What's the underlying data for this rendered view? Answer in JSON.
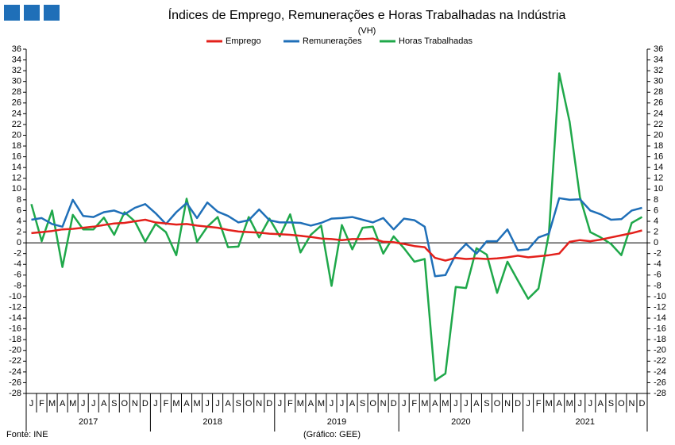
{
  "chart_data": {
    "type": "line",
    "title": "Índices de Emprego, Remunerações e Horas Trabalhadas na Indústria",
    "subtitle": "(VH)",
    "source": "Fonte: INE",
    "credit": "(Gráfico: GEE)",
    "categories": [
      "J",
      "F",
      "M",
      "A",
      "M",
      "J",
      "J",
      "A",
      "S",
      "O",
      "N",
      "D",
      "J",
      "F",
      "M",
      "A",
      "M",
      "J",
      "J",
      "A",
      "S",
      "O",
      "N",
      "D",
      "J",
      "F",
      "M",
      "A",
      "M",
      "J",
      "J",
      "A",
      "S",
      "O",
      "N",
      "D",
      "J",
      "F",
      "M",
      "A",
      "M",
      "J",
      "J",
      "A",
      "S",
      "O",
      "N",
      "D",
      "J",
      "F",
      "M",
      "A",
      "M",
      "J",
      "J",
      "A",
      "S",
      "O",
      "N",
      "D"
    ],
    "years": [
      "2017",
      "2018",
      "2019",
      "2020",
      "2021"
    ],
    "series": [
      {
        "name": "Emprego",
        "color": "#e3201b",
        "values": [
          1.8,
          2,
          2.2,
          2.5,
          2.6,
          2.8,
          3,
          3.3,
          3.6,
          3.7,
          4,
          4.3,
          3.8,
          3.6,
          3.4,
          3.5,
          3.2,
          3,
          2.8,
          2.4,
          2.1,
          2,
          1.9,
          1.7,
          1.6,
          1.5,
          1.3,
          1.1,
          0.8,
          0.7,
          0.5,
          0.7,
          0.7,
          0.8,
          0.2,
          0.1,
          -0.2,
          -0.6,
          -0.8,
          -2.8,
          -3.3,
          -2.8,
          -3,
          -2.9,
          -3,
          -2.9,
          -2.7,
          -2.4,
          -2.7,
          -2.5,
          -2.3,
          -2,
          0.2,
          0.5,
          0.3,
          0.6,
          1,
          1.4,
          1.8,
          2.3
        ]
      },
      {
        "name": "Remunerações",
        "color": "#1f6fb8",
        "values": [
          4.3,
          4.6,
          3.5,
          3,
          8,
          5,
          4.8,
          5.7,
          6,
          5.3,
          6.5,
          7.2,
          5.5,
          3.5,
          5.7,
          7.4,
          4.6,
          7.5,
          5.8,
          5,
          3.8,
          4.2,
          6.2,
          4.2,
          3.8,
          3.8,
          3.7,
          3.2,
          3.7,
          4.5,
          4.6,
          4.8,
          4.3,
          3.8,
          4.6,
          2.5,
          4.5,
          4.2,
          3,
          -6.2,
          -6,
          -2.2,
          -0.2,
          -2,
          0.3,
          0.3,
          2.5,
          -1.4,
          -1.2,
          1,
          1.7,
          8.3,
          8,
          8.1,
          6,
          5.3,
          4.3,
          4.4,
          6,
          6.5
        ]
      },
      {
        "name": "Horas Trabalhadas",
        "color": "#1fa84a",
        "values": [
          7.2,
          0.3,
          6,
          -4.5,
          5.2,
          2.5,
          2.5,
          4.7,
          1.5,
          5.7,
          4,
          0.2,
          3.5,
          2,
          -2.3,
          8.2,
          0.2,
          3,
          4.8,
          -0.8,
          -0.7,
          4.8,
          1,
          4.5,
          1.2,
          5.3,
          -1.8,
          1.5,
          3.2,
          -8,
          3.3,
          -1.2,
          2.8,
          3,
          -2,
          1.2,
          -1,
          -3.5,
          -3,
          -25.6,
          -24.3,
          -8.2,
          -8.4,
          -1,
          -2.2,
          -9.3,
          -3.5,
          -7,
          -10.4,
          -8.5,
          1.7,
          31.5,
          22.5,
          8.5,
          2,
          1,
          -0.2,
          -2.3,
          3.7,
          4.8
        ]
      }
    ],
    "ylim": [
      -28,
      36
    ],
    "yticks": [
      -28,
      -26,
      -24,
      -22,
      -20,
      -18,
      -16,
      -14,
      -12,
      -10,
      -8,
      -6,
      -4,
      -2,
      0,
      2,
      4,
      6,
      8,
      10,
      12,
      14,
      16,
      18,
      20,
      22,
      24,
      26,
      28,
      30,
      32,
      34,
      36
    ],
    "y2lim": [
      -28,
      36
    ],
    "y2ticks": [
      -28,
      -26,
      -24,
      -22,
      -20,
      -18,
      -16,
      -14,
      -12,
      -10,
      -8,
      -6,
      -4,
      -2,
      0,
      2,
      4,
      6,
      8,
      10,
      12,
      14,
      16,
      18,
      20,
      22,
      24,
      26,
      28,
      30,
      32,
      34,
      36
    ],
    "grid": false,
    "legend": "top"
  }
}
